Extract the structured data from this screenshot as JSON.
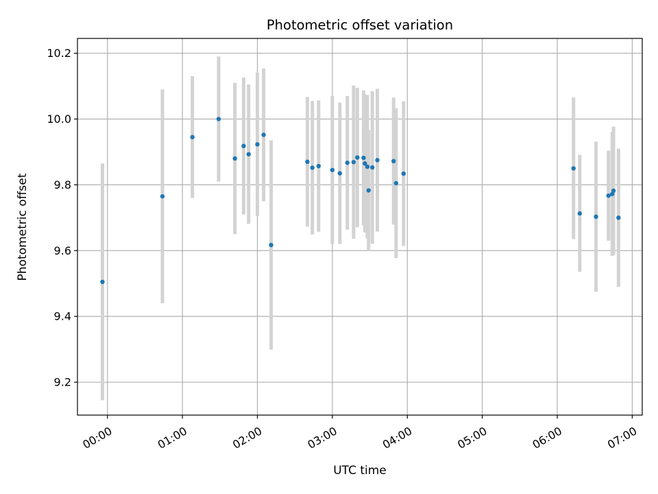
{
  "chart_data": {
    "type": "scatter",
    "title": "Photometric offset variation",
    "xlabel": "UTC time",
    "ylabel": "Photometric offset",
    "x_unit": "UTC time (HH:MM)",
    "xlim": [
      "-00:24",
      "07:08"
    ],
    "ylim": [
      9.1,
      10.245
    ],
    "x_ticks": [
      "00:00",
      "01:00",
      "02:00",
      "03:00",
      "04:00",
      "05:00",
      "06:00",
      "07:00"
    ],
    "y_ticks": [
      9.2,
      9.4,
      9.6,
      9.8,
      10.0,
      10.2
    ],
    "y_tick_labels": [
      "9.2",
      "9.4",
      "9.6",
      "9.8",
      "10.0",
      "10.2"
    ],
    "grid": true,
    "point_color": "#1f77b4",
    "errorbar_color": "#d3d3d3",
    "points": [
      {
        "x": "-00:04",
        "y": 9.505,
        "err": 0.36
      },
      {
        "x": "00:44",
        "y": 9.765,
        "err": 0.325
      },
      {
        "x": "01:08",
        "y": 9.945,
        "err": 0.185
      },
      {
        "x": "01:29",
        "y": 10.0,
        "err": 0.19
      },
      {
        "x": "01:42",
        "y": 9.88,
        "err": 0.23
      },
      {
        "x": "01:49",
        "y": 9.918,
        "err": 0.208
      },
      {
        "x": "01:53",
        "y": 9.893,
        "err": 0.212
      },
      {
        "x": "02:00",
        "y": 9.923,
        "err": 0.218
      },
      {
        "x": "02:05",
        "y": 9.952,
        "err": 0.202
      },
      {
        "x": "02:11",
        "y": 9.617,
        "err": 0.318
      },
      {
        "x": "02:40",
        "y": 9.87,
        "err": 0.197
      },
      {
        "x": "02:44",
        "y": 9.852,
        "err": 0.203
      },
      {
        "x": "02:49",
        "y": 9.857,
        "err": 0.2
      },
      {
        "x": "03:00",
        "y": 9.845,
        "err": 0.225
      },
      {
        "x": "03:06",
        "y": 9.835,
        "err": 0.215
      },
      {
        "x": "03:12",
        "y": 9.867,
        "err": 0.203
      },
      {
        "x": "03:17",
        "y": 9.869,
        "err": 0.233
      },
      {
        "x": "03:20",
        "y": 9.883,
        "err": 0.212
      },
      {
        "x": "03:25",
        "y": 9.882,
        "err": 0.205
      },
      {
        "x": "03:26",
        "y": 9.865,
        "err": 0.21
      },
      {
        "x": "03:28",
        "y": 9.855,
        "err": 0.218
      },
      {
        "x": "03:29",
        "y": 9.783,
        "err": 0.183
      },
      {
        "x": "03:32",
        "y": 9.853,
        "err": 0.232
      },
      {
        "x": "03:36",
        "y": 9.875,
        "err": 0.217
      },
      {
        "x": "03:49",
        "y": 9.872,
        "err": 0.193
      },
      {
        "x": "03:51",
        "y": 9.805,
        "err": 0.228
      },
      {
        "x": "03:57",
        "y": 9.834,
        "err": 0.22
      },
      {
        "x": "06:13",
        "y": 9.85,
        "err": 0.215
      },
      {
        "x": "06:18",
        "y": 9.713,
        "err": 0.178
      },
      {
        "x": "06:31",
        "y": 9.703,
        "err": 0.228
      },
      {
        "x": "06:41",
        "y": 9.767,
        "err": 0.137
      },
      {
        "x": "06:44",
        "y": 9.772,
        "err": 0.188
      },
      {
        "x": "06:45",
        "y": 9.782,
        "err": 0.195
      },
      {
        "x": "06:49",
        "y": 9.7,
        "err": 0.21
      }
    ]
  }
}
